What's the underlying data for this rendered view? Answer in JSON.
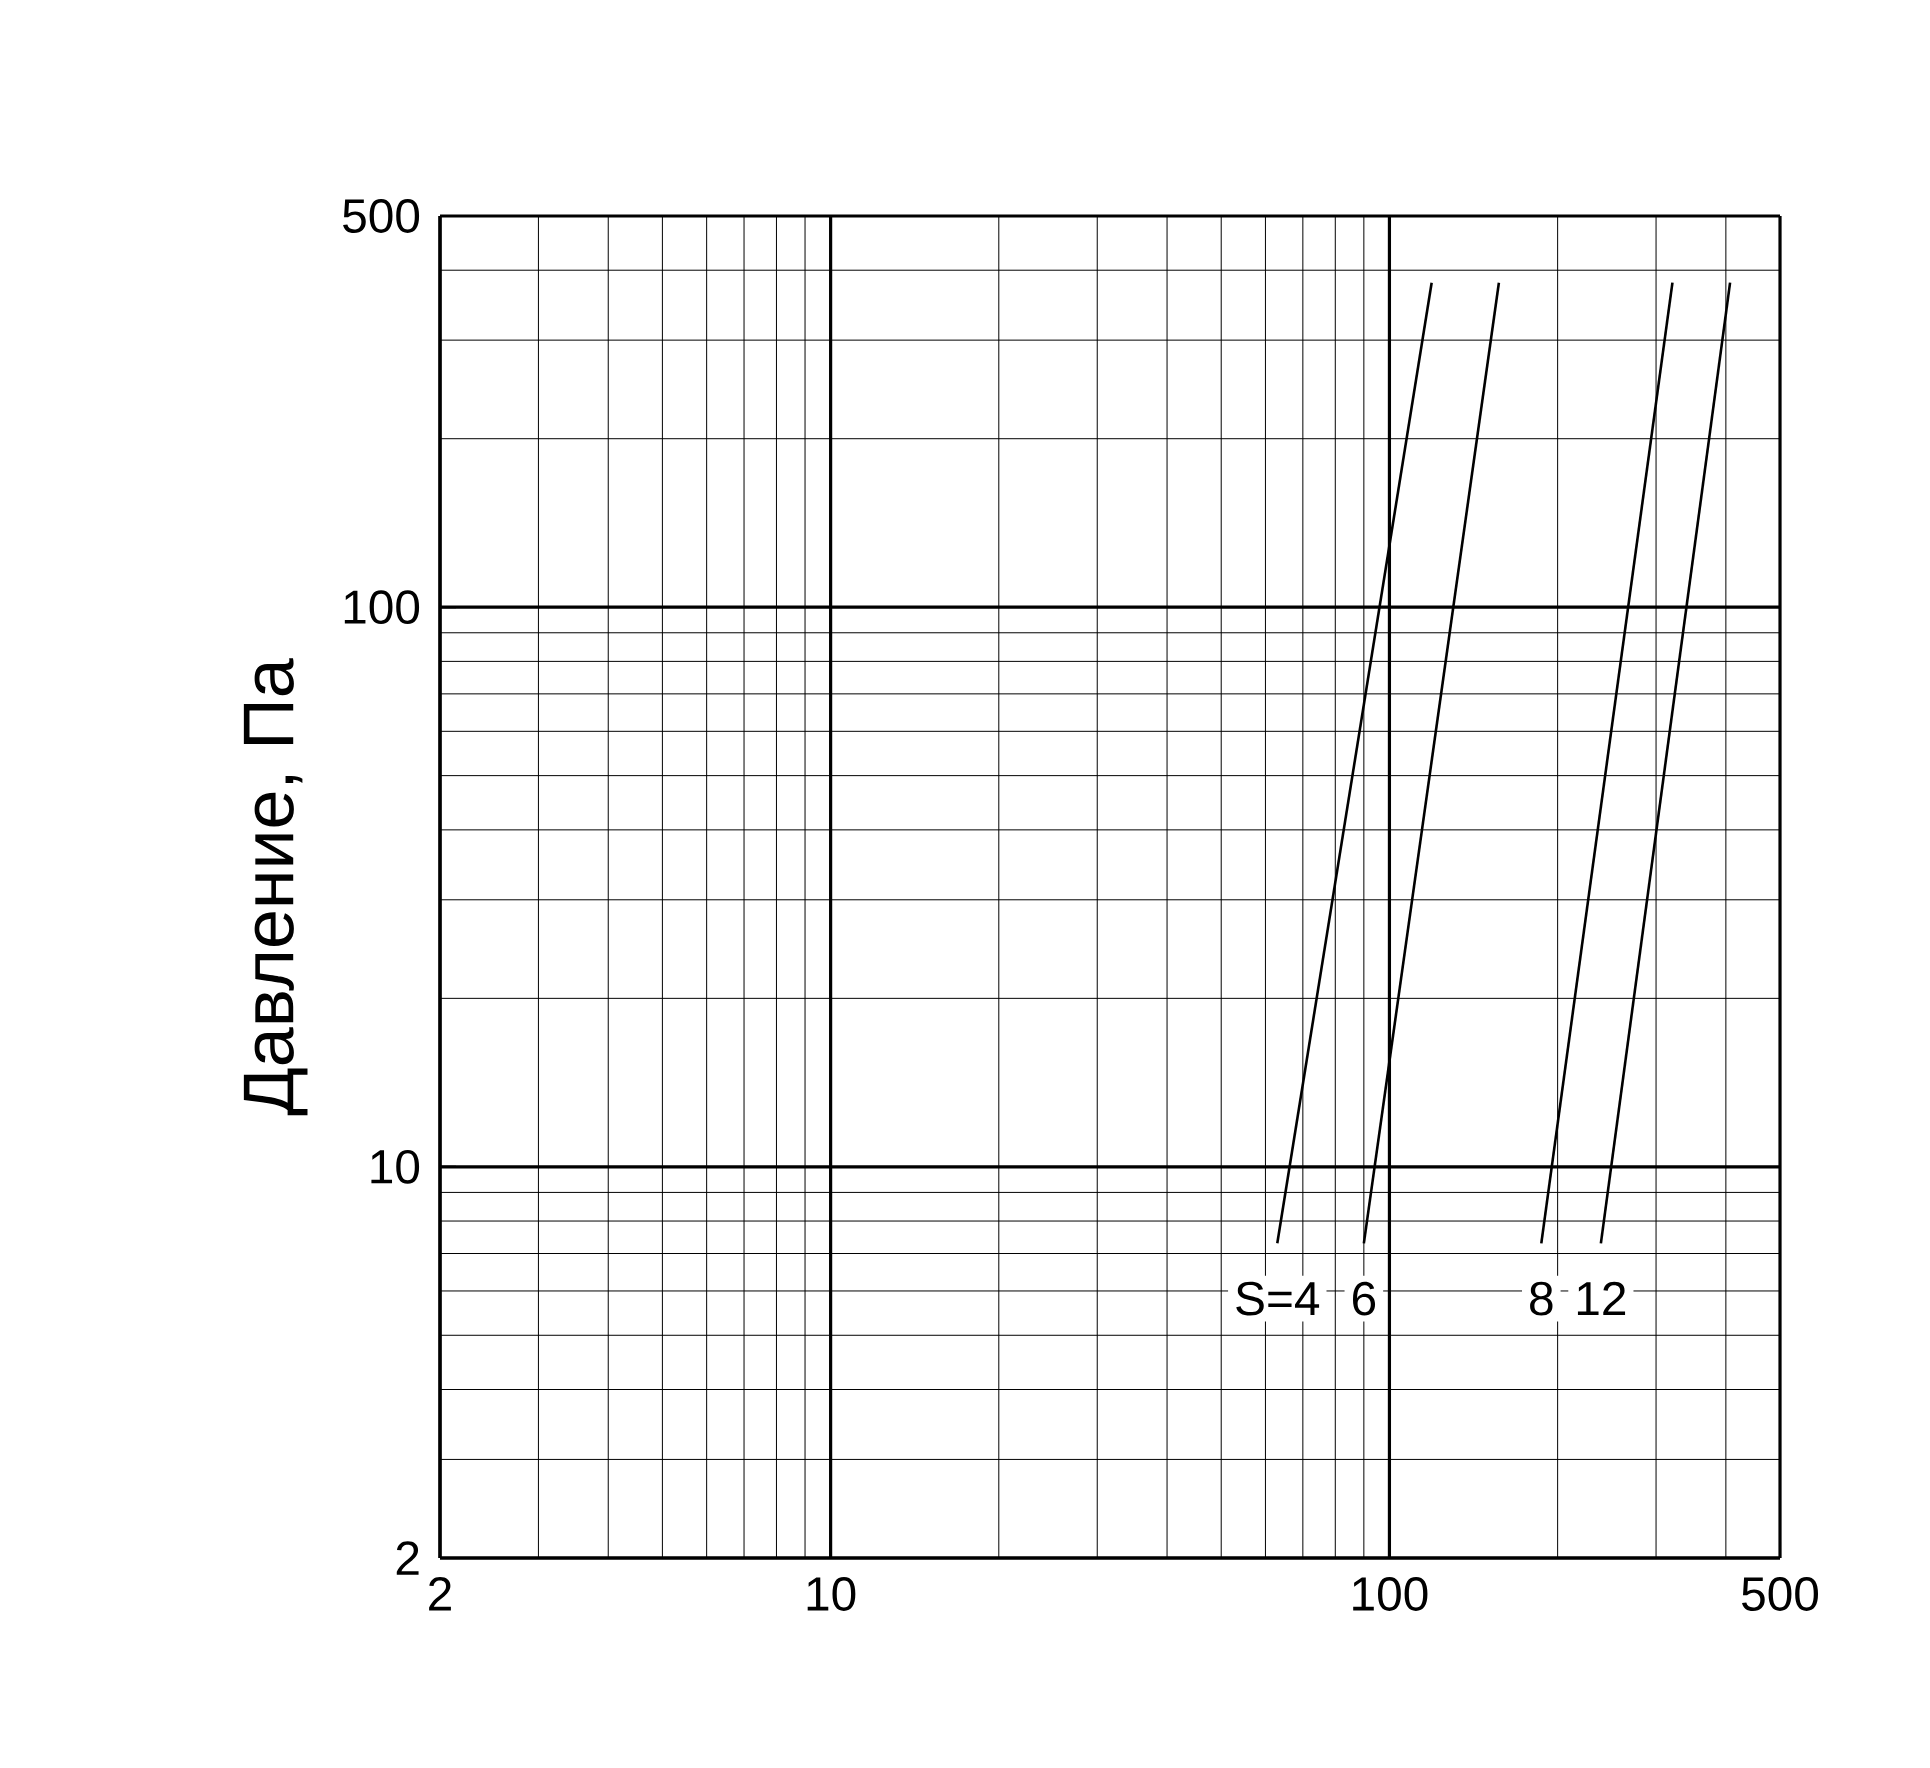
{
  "chart_data": {
    "type": "line",
    "ylabel": "Давление, Па",
    "log": "xy",
    "xlim": [
      2,
      500
    ],
    "ylim": [
      2,
      500
    ],
    "xticks": [
      2,
      10,
      100,
      500
    ],
    "yticks": [
      2,
      10,
      100,
      500
    ],
    "grid": true,
    "line_style": "solid",
    "marker": "none",
    "series": [
      {
        "name": "S=4",
        "color": "#000000",
        "x": [
          63,
          119
        ],
        "values": [
          7.3,
          380
        ]
      },
      {
        "name": "6",
        "color": "#000000",
        "x": [
          90,
          157
        ],
        "values": [
          7.3,
          380
        ]
      },
      {
        "name": "8",
        "color": "#000000",
        "x": [
          187,
          321
        ],
        "values": [
          7.3,
          380
        ]
      },
      {
        "name": "12",
        "color": "#000000",
        "x": [
          239,
          407
        ],
        "values": [
          7.3,
          380
        ]
      }
    ]
  }
}
